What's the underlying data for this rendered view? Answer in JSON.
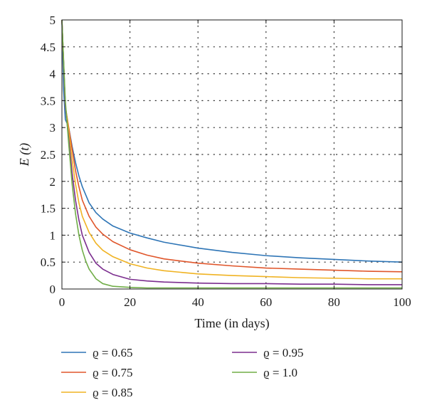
{
  "chart_data": {
    "type": "line",
    "xlabel": "Time (in days)",
    "ylabel": "E (t)",
    "xlim": [
      0,
      100
    ],
    "ylim": [
      0,
      5
    ],
    "xticks": [
      0,
      20,
      40,
      60,
      80,
      100
    ],
    "yticks": [
      0,
      0.5,
      1,
      1.5,
      2,
      2.5,
      3,
      3.5,
      4,
      4.5,
      5
    ],
    "xtick_labels": [
      "0",
      "20",
      "40",
      "60",
      "80",
      "100"
    ],
    "ytick_labels": [
      "0",
      "0.5",
      "1",
      "1.5",
      "2",
      "2.5",
      "3",
      "3.5",
      "4",
      "4.5",
      "5"
    ],
    "grid": "dotted",
    "legend_position": "bottom",
    "series": [
      {
        "name": "ϱ = 0.65",
        "color": "#2e75b6",
        "x": [
          0,
          0.5,
          1,
          1.5,
          2,
          3,
          4,
          5,
          6,
          8,
          10,
          12,
          15,
          20,
          25,
          30,
          40,
          50,
          60,
          70,
          80,
          90,
          100
        ],
        "y": [
          5,
          3.7,
          3.15,
          3.08,
          3.0,
          2.65,
          2.35,
          2.1,
          1.9,
          1.6,
          1.42,
          1.3,
          1.17,
          1.04,
          0.95,
          0.87,
          0.76,
          0.68,
          0.62,
          0.58,
          0.55,
          0.52,
          0.5
        ]
      },
      {
        "name": "ϱ = 0.75",
        "color": "#e0562b",
        "x": [
          0,
          1,
          2,
          3,
          4,
          5,
          6,
          8,
          10,
          12,
          15,
          20,
          25,
          30,
          40,
          50,
          60,
          70,
          80,
          90,
          100
        ],
        "y": [
          5,
          3.4,
          3.0,
          2.6,
          2.2,
          1.9,
          1.65,
          1.35,
          1.15,
          1.02,
          0.88,
          0.73,
          0.63,
          0.56,
          0.48,
          0.43,
          0.39,
          0.37,
          0.35,
          0.33,
          0.32
        ]
      },
      {
        "name": "ϱ = 0.85",
        "color": "#f0b323",
        "x": [
          0,
          1,
          2,
          3,
          4,
          5,
          6,
          8,
          10,
          12,
          15,
          20,
          25,
          30,
          40,
          50,
          60,
          70,
          80,
          90,
          100
        ],
        "y": [
          5,
          3.4,
          2.95,
          2.4,
          1.95,
          1.6,
          1.35,
          1.05,
          0.85,
          0.72,
          0.6,
          0.47,
          0.39,
          0.34,
          0.28,
          0.25,
          0.23,
          0.21,
          0.2,
          0.19,
          0.19
        ]
      },
      {
        "name": "ϱ = 0.95",
        "color": "#7b2d8e",
        "x": [
          0,
          1,
          2,
          3,
          4,
          5,
          6,
          8,
          10,
          12,
          15,
          20,
          25,
          30,
          40,
          50,
          60,
          70,
          80,
          90,
          100
        ],
        "y": [
          5,
          3.4,
          2.8,
          2.15,
          1.65,
          1.28,
          1.0,
          0.68,
          0.48,
          0.37,
          0.27,
          0.18,
          0.15,
          0.13,
          0.11,
          0.1,
          0.1,
          0.09,
          0.09,
          0.08,
          0.08
        ]
      },
      {
        "name": "ϱ = 1.0",
        "color": "#70ad47",
        "x": [
          0,
          1,
          2,
          3,
          4,
          5,
          6,
          7,
          8,
          10,
          12,
          15,
          20,
          25,
          30,
          40,
          50,
          60,
          70,
          80,
          90,
          100
        ],
        "y": [
          5,
          3.5,
          2.7,
          1.95,
          1.4,
          1.0,
          0.72,
          0.52,
          0.37,
          0.19,
          0.1,
          0.05,
          0.03,
          0.02,
          0.02,
          0.02,
          0.02,
          0.02,
          0.02,
          0.02,
          0.02,
          0.02
        ]
      }
    ]
  }
}
